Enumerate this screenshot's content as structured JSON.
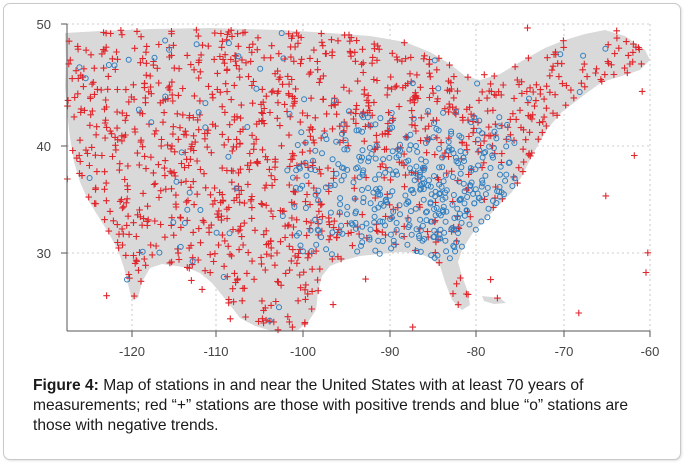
{
  "figure": {
    "caption_label": "Figure 4:",
    "caption_text": " Map of stations in and near the United States with at least 70 years of measurements; red “+” stations are those with positive trends and blue “o” stations are those with negative trends."
  },
  "colors": {
    "land": "#d9d9d9",
    "positive_marker": "#e0252b",
    "negative_marker": "#2f7fc1",
    "grid": "#bdbdbd",
    "axis": "#555555"
  },
  "chart_data": {
    "type": "scatter",
    "x_ticks": [
      "-120",
      "-110",
      "-100",
      "-90",
      "-80",
      "-70",
      "-60"
    ],
    "y_ticks": [
      "50",
      "40",
      "30"
    ],
    "xlim": [
      -127,
      -60
    ],
    "ylim": [
      24,
      50
    ],
    "grid": true,
    "series": [
      {
        "marker": "+",
        "color": "#e0252b",
        "density": "very dense across the whole map, especially west, north and northeast"
      },
      {
        "marker": "o",
        "color": "#2f7fc1",
        "density": "dense in the southeast and central-south, scattered elsewhere"
      }
    ]
  }
}
